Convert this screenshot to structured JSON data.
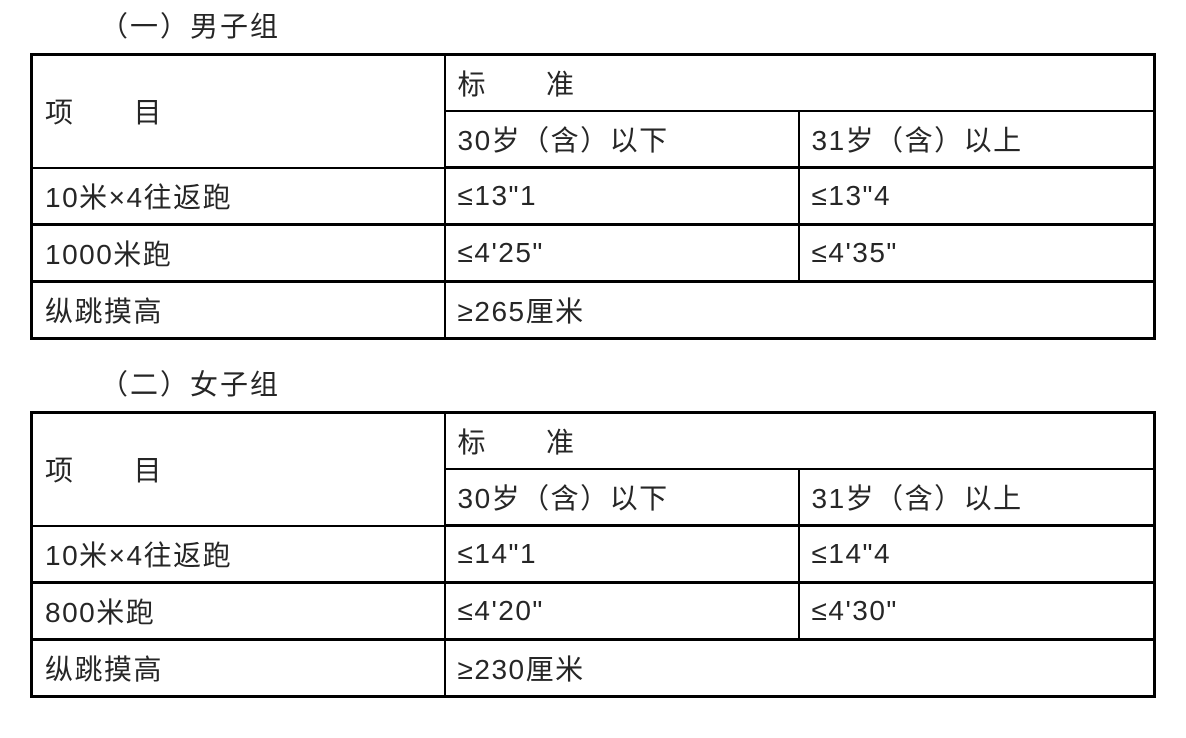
{
  "colors": {
    "text": "#262626",
    "border": "#000000",
    "background": "#ffffff"
  },
  "sections": [
    {
      "title": "（一）男子组",
      "table": {
        "item_header": "项　　目",
        "standard_header": "标　　准",
        "age_col_under": "30岁（含）以下",
        "age_col_over": "31岁（含）以上",
        "rows": [
          {
            "item": "10米×4往返跑",
            "under30": "≤13\"1",
            "over31": "≤13\"4"
          },
          {
            "item": "1000米跑",
            "under30": "≤4'25\"",
            "over31": "≤4'35\""
          },
          {
            "item": "纵跳摸高",
            "all_ages": "≥265厘米"
          }
        ]
      }
    },
    {
      "title": "（二）女子组",
      "table": {
        "item_header": "项　　目",
        "standard_header": "标　　准",
        "age_col_under": "30岁（含）以下",
        "age_col_over": "31岁（含）以上",
        "rows": [
          {
            "item": "10米×4往返跑",
            "under30": "≤14\"1",
            "over31": "≤14\"4"
          },
          {
            "item": "800米跑",
            "under30": "≤4'20\"",
            "over31": "≤4'30\""
          },
          {
            "item": "纵跳摸高",
            "all_ages": "≥230厘米"
          }
        ]
      }
    }
  ]
}
